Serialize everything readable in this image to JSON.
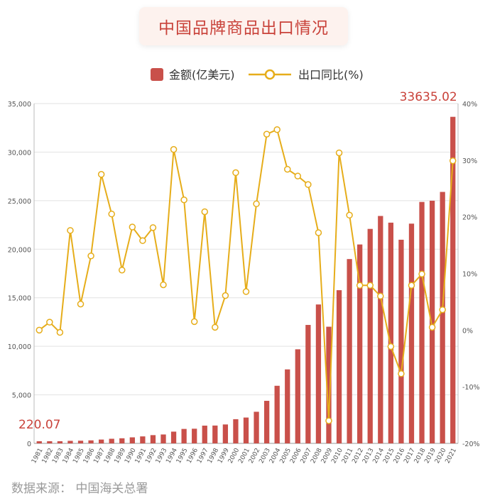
{
  "header": {
    "title": "中国品牌商品出口情况"
  },
  "footer": {
    "source": "数据来源：  中国海关总署"
  },
  "chart_data": {
    "type": "bar",
    "title": "中国品牌商品出口情况",
    "categories": [
      "1981",
      "1982",
      "1983",
      "1984",
      "1985",
      "1986",
      "1987",
      "1988",
      "1989",
      "1990",
      "1991",
      "1992",
      "1993",
      "1994",
      "1995",
      "1996",
      "1997",
      "1998",
      "1999",
      "2000",
      "2001",
      "2002",
      "2003",
      "2004",
      "2005",
      "2006",
      "2007",
      "2008",
      "2009",
      "2010",
      "2011",
      "2012",
      "2013",
      "2014",
      "2015",
      "2016",
      "2017",
      "2018",
      "2019",
      "2020",
      "2021"
    ],
    "series": [
      {
        "name": "金额(亿美元)",
        "type": "bar",
        "axis": "left",
        "color": "#c9504a",
        "values": [
          220.07,
          223,
          222,
          261,
          274,
          309,
          394,
          475,
          525,
          621,
          719,
          849,
          917,
          1210,
          1488,
          1510,
          1828,
          1837,
          1949,
          2492,
          2661,
          3256,
          4382,
          5933,
          7620,
          9690,
          12200,
          14307,
          12016,
          15778,
          18984,
          20487,
          22090,
          23423,
          22735,
          20976,
          22633,
          24867,
          24995,
          25900,
          33635.02
        ]
      },
      {
        "name": "出口同比(%)",
        "type": "line",
        "axis": "right",
        "color": "#e6ad1a",
        "values": [
          0.0,
          1.4,
          -0.4,
          17.6,
          4.6,
          13.1,
          27.5,
          20.5,
          10.6,
          18.2,
          15.8,
          18.1,
          8.0,
          31.9,
          23.0,
          1.5,
          20.9,
          0.5,
          6.1,
          27.8,
          6.8,
          22.3,
          34.6,
          35.4,
          28.4,
          27.2,
          25.7,
          17.2,
          -16.0,
          31.3,
          20.3,
          7.9,
          7.9,
          6.0,
          -2.9,
          -7.7,
          7.9,
          9.9,
          0.5,
          3.6,
          29.9
        ]
      }
    ],
    "ylim": [
      0,
      35000
    ],
    "yticks": [
      "0",
      "5,000",
      "10,000",
      "15,000",
      "20,000",
      "25,000",
      "30,000",
      "35,000"
    ],
    "y2lim": [
      -20,
      40
    ],
    "y2ticks": [
      "-20%",
      "-10%",
      "0%",
      "10%",
      "20%",
      "30%",
      "40%"
    ],
    "annotations": [
      {
        "text": "220.07",
        "category": "1981",
        "color": "#c9423a"
      },
      {
        "text": "33635.02",
        "category": "2021",
        "color": "#c9423a"
      }
    ],
    "legend_position": "top-center",
    "grid": true
  }
}
